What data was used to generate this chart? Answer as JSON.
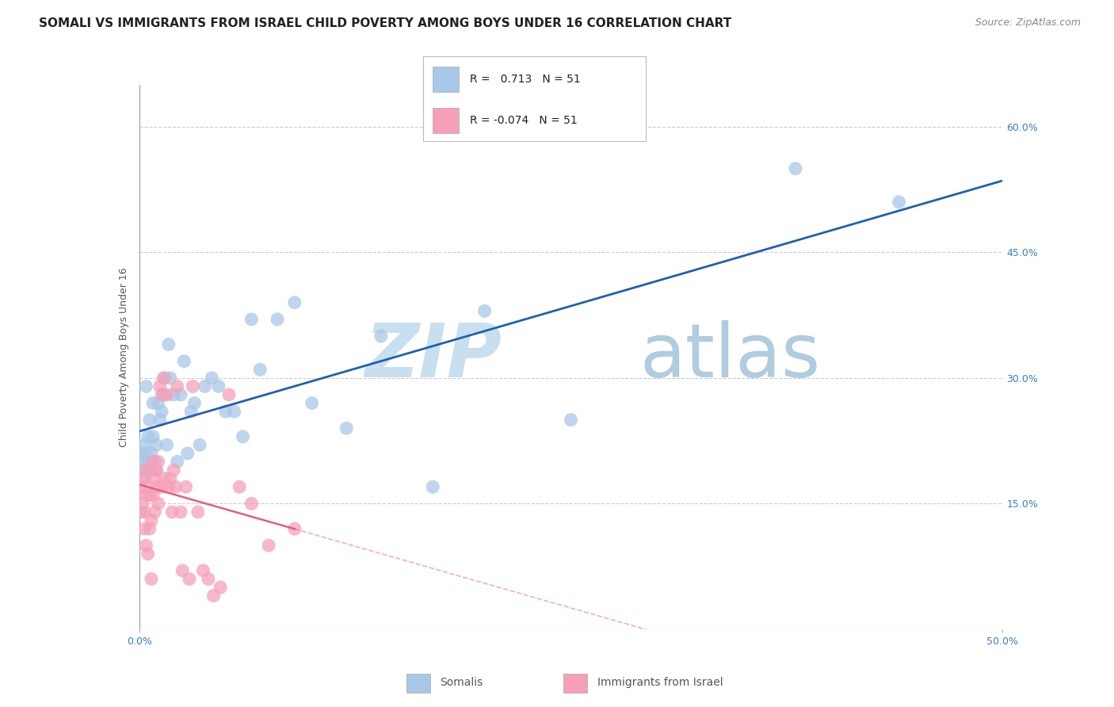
{
  "title": "SOMALI VS IMMIGRANTS FROM ISRAEL CHILD POVERTY AMONG BOYS UNDER 16 CORRELATION CHART",
  "source": "Source: ZipAtlas.com",
  "ylabel": "Child Poverty Among Boys Under 16",
  "xlim": [
    0.0,
    0.5
  ],
  "ylim": [
    0.0,
    0.65
  ],
  "xticks": [
    0.0,
    0.5
  ],
  "xticklabels": [
    "0.0%",
    "50.0%"
  ],
  "yticks": [
    0.0,
    0.15,
    0.3,
    0.45,
    0.6
  ],
  "ytick_right_labels": [
    "",
    "15.0%",
    "30.0%",
    "45.0%",
    "60.0%"
  ],
  "somali_color": "#a8c8e8",
  "israel_color": "#f5a0b8",
  "somali_line_color": "#2060b0",
  "israel_line_color": "#e06080",
  "watermark_zip": "ZIP",
  "watermark_atlas": "atlas",
  "somali_x": [
    0.001,
    0.002,
    0.002,
    0.003,
    0.003,
    0.004,
    0.004,
    0.005,
    0.005,
    0.006,
    0.006,
    0.007,
    0.008,
    0.008,
    0.009,
    0.01,
    0.01,
    0.011,
    0.012,
    0.013,
    0.014,
    0.015,
    0.016,
    0.017,
    0.018,
    0.02,
    0.022,
    0.024,
    0.026,
    0.028,
    0.03,
    0.032,
    0.035,
    0.038,
    0.042,
    0.046,
    0.05,
    0.055,
    0.06,
    0.065,
    0.07,
    0.08,
    0.09,
    0.1,
    0.12,
    0.14,
    0.17,
    0.2,
    0.25,
    0.38,
    0.44
  ],
  "somali_y": [
    0.21,
    0.2,
    0.19,
    0.22,
    0.18,
    0.21,
    0.29,
    0.2,
    0.23,
    0.25,
    0.19,
    0.21,
    0.23,
    0.27,
    0.2,
    0.19,
    0.22,
    0.27,
    0.25,
    0.26,
    0.28,
    0.3,
    0.22,
    0.34,
    0.3,
    0.28,
    0.2,
    0.28,
    0.32,
    0.21,
    0.26,
    0.27,
    0.22,
    0.29,
    0.3,
    0.29,
    0.26,
    0.26,
    0.23,
    0.37,
    0.31,
    0.37,
    0.39,
    0.27,
    0.24,
    0.35,
    0.17,
    0.38,
    0.25,
    0.55,
    0.51
  ],
  "israel_x": [
    0.001,
    0.001,
    0.002,
    0.002,
    0.003,
    0.003,
    0.004,
    0.004,
    0.004,
    0.005,
    0.005,
    0.006,
    0.006,
    0.007,
    0.007,
    0.007,
    0.008,
    0.008,
    0.009,
    0.009,
    0.01,
    0.01,
    0.011,
    0.011,
    0.012,
    0.013,
    0.013,
    0.014,
    0.015,
    0.016,
    0.017,
    0.018,
    0.019,
    0.02,
    0.021,
    0.022,
    0.024,
    0.025,
    0.027,
    0.029,
    0.031,
    0.034,
    0.037,
    0.04,
    0.043,
    0.047,
    0.052,
    0.058,
    0.065,
    0.075,
    0.09
  ],
  "israel_y": [
    0.17,
    0.14,
    0.18,
    0.15,
    0.14,
    0.12,
    0.16,
    0.19,
    0.1,
    0.17,
    0.09,
    0.16,
    0.12,
    0.19,
    0.13,
    0.06,
    0.2,
    0.16,
    0.18,
    0.14,
    0.19,
    0.17,
    0.15,
    0.2,
    0.29,
    0.28,
    0.17,
    0.3,
    0.18,
    0.28,
    0.17,
    0.18,
    0.14,
    0.19,
    0.17,
    0.29,
    0.14,
    0.07,
    0.17,
    0.06,
    0.29,
    0.14,
    0.07,
    0.06,
    0.04,
    0.05,
    0.28,
    0.17,
    0.15,
    0.1,
    0.12
  ],
  "background_color": "#ffffff",
  "grid_color": "#cccccc",
  "title_fontsize": 11,
  "axis_label_fontsize": 9,
  "tick_fontsize": 9,
  "source_fontsize": 9
}
